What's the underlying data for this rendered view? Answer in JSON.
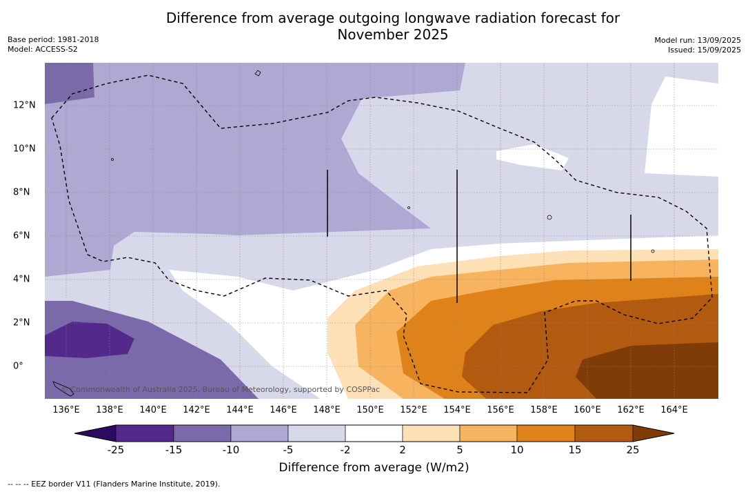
{
  "title_line1": "Difference from average outgoing longwave radiation forecast for",
  "title_line2": "November 2025",
  "base_period": "Base period: 1981-2018",
  "model": "Model: ACCESS-S2",
  "model_run": "Model run: 13/09/2025",
  "issued": "Issued: 15/09/2025",
  "copyright": "© Commonwealth of Australia 2025, Bureau of Meteorology, supported by COSPPac",
  "lon_labels": [
    "136°E",
    "138°E",
    "140°E",
    "142°E",
    "144°E",
    "146°E",
    "148°E",
    "150°E",
    "152°E",
    "154°E",
    "156°E",
    "158°E",
    "160°E",
    "162°E",
    "164°E"
  ],
  "lat_labels": [
    "12°N",
    "10°N",
    "8°N",
    "6°N",
    "4°N",
    "2°N",
    "0°"
  ],
  "colorbar": {
    "ticks": [
      "-25",
      "-15",
      "-10",
      "-5",
      "-2",
      "2",
      "5",
      "10",
      "15",
      "25"
    ],
    "colors": [
      "#2d0a5e",
      "#532a8c",
      "#7a6aaa",
      "#afa8d2",
      "#d8d8eb",
      "#ffffff",
      "#fde0b6",
      "#f8b35e",
      "#e0821a",
      "#b25a10",
      "#7f3b08"
    ],
    "label": "Difference from average (W/m2)"
  },
  "footer": "-- -- -- EEZ border V11 (Flanders Marine Institute, 2019)."
}
